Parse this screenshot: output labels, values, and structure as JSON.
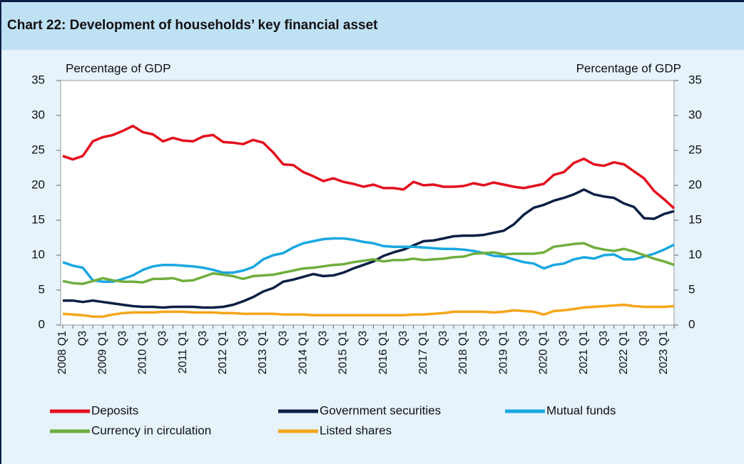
{
  "chart_data": {
    "type": "line",
    "title": "Chart 22: Development of households’ key financial asset",
    "ylabel": "Percentage of GDP",
    "y2label": "Percentage of GDP",
    "categories": [
      "2008 Q1",
      null,
      "Q3",
      null,
      "2009 Q1",
      null,
      "Q3",
      null,
      "2010 Q1",
      null,
      "Q3",
      null,
      "2011 Q1",
      null,
      "Q3",
      null,
      "2012 Q1",
      null,
      "Q3",
      null,
      "2013 Q1",
      null,
      "Q3",
      null,
      "2014 Q1",
      null,
      "Q3",
      null,
      "2015 Q1",
      null,
      "Q3",
      null,
      "2016 Q1",
      null,
      "Q3",
      null,
      "2017 Q1",
      null,
      "Q3",
      null,
      "2018 Q1",
      null,
      "Q3",
      null,
      "2019 Q1",
      null,
      "Q3",
      null,
      "2020 Q1",
      null,
      "Q3",
      null,
      "2021 Q1",
      null,
      "Q3",
      null,
      "2022 Q1",
      null,
      "Q3",
      null,
      "2023 Q1",
      null
    ],
    "series": [
      {
        "name": "Deposits",
        "color": "#e3101e",
        "values": [
          24.2,
          23.7,
          24.2,
          26.3,
          26.9,
          27.2,
          27.8,
          28.5,
          27.6,
          27.3,
          26.3,
          26.8,
          26.4,
          26.3,
          27.0,
          27.2,
          26.2,
          26.1,
          25.9,
          26.5,
          26.1,
          24.7,
          23.0,
          22.9,
          21.9,
          21.3,
          20.6,
          21.0,
          20.5,
          20.2,
          19.8,
          20.1,
          19.6,
          19.6,
          19.4,
          20.5,
          20.0,
          20.1,
          19.8,
          19.8,
          19.9,
          20.3,
          20.0,
          20.4,
          20.1,
          19.8,
          19.6,
          19.9,
          20.2,
          21.5,
          21.9,
          23.2,
          23.8,
          23.0,
          22.8,
          23.3,
          23.0,
          22.0,
          21.0,
          19.2,
          18.0,
          16.7
        ]
      },
      {
        "name": "Government securities",
        "color": "#0c1f45",
        "values": [
          3.5,
          3.5,
          3.3,
          3.5,
          3.3,
          3.1,
          2.9,
          2.7,
          2.6,
          2.6,
          2.5,
          2.6,
          2.6,
          2.6,
          2.5,
          2.5,
          2.6,
          2.9,
          3.4,
          4.0,
          4.8,
          5.3,
          6.2,
          6.5,
          6.9,
          7.3,
          7.0,
          7.1,
          7.5,
          8.1,
          8.6,
          9.1,
          9.9,
          10.4,
          10.8,
          11.4,
          12.0,
          12.1,
          12.4,
          12.7,
          12.8,
          12.8,
          12.9,
          13.2,
          13.5,
          14.4,
          15.8,
          16.8,
          17.2,
          17.8,
          18.2,
          18.7,
          19.4,
          18.7,
          18.4,
          18.2,
          17.4,
          16.9,
          15.3,
          15.2,
          15.9,
          16.3
        ]
      },
      {
        "name": "Mutual funds",
        "color": "#1aa7e0",
        "values": [
          9.0,
          8.5,
          8.2,
          6.4,
          6.2,
          6.2,
          6.6,
          7.1,
          7.9,
          8.4,
          8.6,
          8.6,
          8.5,
          8.4,
          8.2,
          7.9,
          7.5,
          7.5,
          7.8,
          8.3,
          9.4,
          10.0,
          10.3,
          11.1,
          11.7,
          12.0,
          12.3,
          12.4,
          12.4,
          12.2,
          11.9,
          11.7,
          11.3,
          11.2,
          11.2,
          11.2,
          11.1,
          11.0,
          10.9,
          10.9,
          10.8,
          10.6,
          10.3,
          9.9,
          9.8,
          9.4,
          9.0,
          8.8,
          8.1,
          8.6,
          8.8,
          9.4,
          9.7,
          9.5,
          10.0,
          10.1,
          9.4,
          9.4,
          9.8,
          10.2,
          10.8,
          11.5
        ]
      },
      {
        "name": "Currency in circulation",
        "color": "#6fae3e",
        "values": [
          6.3,
          6.0,
          5.9,
          6.3,
          6.7,
          6.4,
          6.2,
          6.2,
          6.1,
          6.6,
          6.6,
          6.7,
          6.3,
          6.4,
          6.9,
          7.4,
          7.2,
          7.0,
          6.6,
          7.0,
          7.1,
          7.2,
          7.5,
          7.8,
          8.1,
          8.2,
          8.4,
          8.6,
          8.7,
          9.0,
          9.2,
          9.4,
          9.1,
          9.3,
          9.3,
          9.5,
          9.3,
          9.4,
          9.5,
          9.7,
          9.8,
          10.2,
          10.3,
          10.4,
          10.1,
          10.2,
          10.2,
          10.2,
          10.4,
          11.2,
          11.4,
          11.6,
          11.7,
          11.1,
          10.8,
          10.6,
          10.9,
          10.5,
          10.0,
          9.5,
          9.1,
          8.6
        ]
      },
      {
        "name": "Listed shares",
        "color": "#f5a51c",
        "values": [
          1.6,
          1.5,
          1.4,
          1.2,
          1.2,
          1.5,
          1.7,
          1.8,
          1.8,
          1.8,
          1.9,
          1.9,
          1.9,
          1.8,
          1.8,
          1.8,
          1.7,
          1.7,
          1.6,
          1.6,
          1.6,
          1.6,
          1.5,
          1.5,
          1.5,
          1.4,
          1.4,
          1.4,
          1.4,
          1.4,
          1.4,
          1.4,
          1.4,
          1.4,
          1.4,
          1.5,
          1.5,
          1.6,
          1.7,
          1.9,
          1.9,
          1.9,
          1.9,
          1.8,
          1.9,
          2.1,
          2.0,
          1.9,
          1.5,
          2.0,
          2.1,
          2.3,
          2.5,
          2.6,
          2.7,
          2.8,
          2.9,
          2.7,
          2.6,
          2.6,
          2.6,
          2.7
        ]
      }
    ],
    "ylim": [
      0,
      35
    ],
    "yticks": [
      0,
      5,
      10,
      15,
      20,
      25,
      30,
      35
    ],
    "y2lim": [
      0,
      35
    ],
    "y2ticks": [
      0,
      5,
      10,
      15,
      20,
      25,
      30,
      35
    ],
    "legend": "bottom"
  }
}
